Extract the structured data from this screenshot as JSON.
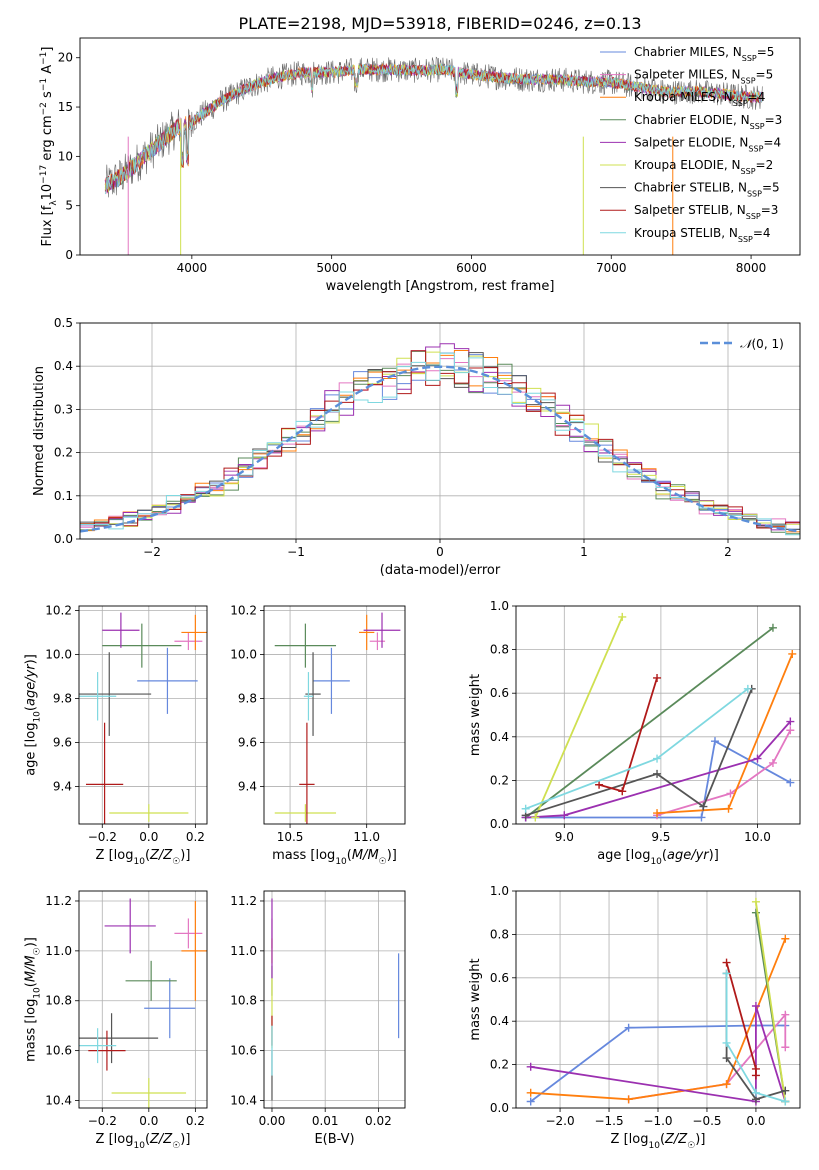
{
  "figure_title": "PLATE=2198, MJD=53918, FIBERID=0246, z=0.13",
  "colors": {
    "Chabrier MILES": "#6688dd",
    "Salpeter MILES": "#e377c2",
    "Kroupa MILES": "#ff7f0e",
    "Chabrier ELODIE": "#5a8a5a",
    "Salpeter ELODIE": "#9b30b0",
    "Kroupa ELODIE": "#cfe050",
    "Chabrier STELIB": "#555555",
    "Salpeter STELIB": "#b01a1a",
    "Kroupa STELIB": "#7fd8e0"
  },
  "chart_data": [
    {
      "id": "spectrum",
      "type": "line",
      "xlabel": "wavelength [Angstrom, rest frame]",
      "ylabel": "Flux [f_λ10^-17 erg cm^-2 s^-1 A^-1]",
      "xlim": [
        3200,
        8350
      ],
      "ylim": [
        0,
        22
      ],
      "xticks": [
        4000,
        5000,
        6000,
        7000,
        8000
      ],
      "yticks": [
        0,
        5,
        10,
        15,
        20
      ],
      "grid": false,
      "legend_position": "upper-right",
      "legend": [
        {
          "name": "Chabrier MILES",
          "nssp": "5"
        },
        {
          "name": "Salpeter MILES",
          "nssp": "5"
        },
        {
          "name": "Kroupa MILES",
          "nssp": "4"
        },
        {
          "name": "Chabrier ELODIE",
          "nssp": "3"
        },
        {
          "name": "Salpeter ELODIE",
          "nssp": "4"
        },
        {
          "name": "Kroupa ELODIE",
          "nssp": "2"
        },
        {
          "name": "Chabrier STELIB",
          "nssp": "5"
        },
        {
          "name": "Salpeter STELIB",
          "nssp": "3"
        },
        {
          "name": "Kroupa STELIB",
          "nssp": "4"
        }
      ],
      "data_envelope": {
        "x": [
          3380,
          3500,
          3700,
          3900,
          4000,
          4200,
          4400,
          4600,
          4800,
          5000,
          5200,
          5400,
          5600,
          5800,
          6000,
          6200,
          6400,
          6600,
          6800,
          7000,
          7200,
          7400,
          7600,
          7800,
          8000,
          8080
        ],
        "y": [
          7.0,
          8.0,
          10.5,
          13.0,
          13.5,
          15.5,
          17.0,
          18.0,
          18.5,
          18.5,
          18.8,
          18.8,
          18.7,
          18.8,
          18.3,
          18.0,
          17.8,
          17.8,
          17.6,
          17.5,
          17.0,
          16.5,
          16.6,
          16.3,
          16.0,
          16.0
        ]
      }
    },
    {
      "id": "residuals",
      "type": "line",
      "xlabel": "(data-model)/error",
      "ylabel": "Normed distribution",
      "xlim": [
        -2.5,
        2.5
      ],
      "ylim": [
        0,
        0.5
      ],
      "xticks": [
        -2,
        -1,
        0,
        1,
        2
      ],
      "yticks": [
        0.0,
        0.1,
        0.2,
        0.3,
        0.4,
        0.5
      ],
      "grid": true,
      "legend_position": "upper-right",
      "legend": [
        {
          "name": "N(0, 1)"
        }
      ],
      "reference_curve": "standard normal pdf",
      "histogram_bin_width": 0.1
    },
    {
      "id": "age_vs_Z",
      "type": "scatter",
      "xlabel": "Z [log10(Z/Z☉)]",
      "ylabel": "age  [log10(age/yr)]",
      "xlim": [
        -0.3,
        0.25
      ],
      "ylim": [
        9.23,
        10.22
      ],
      "xticks": [
        -0.2,
        0.0,
        0.2
      ],
      "yticks": [
        9.4,
        9.6,
        9.8,
        10.0,
        10.2
      ],
      "grid": true,
      "points": [
        {
          "model": "Chabrier MILES",
          "x": 0.08,
          "y": 9.88,
          "xerr": 0.13,
          "yerr": 0.15
        },
        {
          "model": "Salpeter MILES",
          "x": 0.17,
          "y": 10.06,
          "xerr": 0.06,
          "yerr": 0.04
        },
        {
          "model": "Kroupa MILES",
          "x": 0.2,
          "y": 10.1,
          "xerr": 0.06,
          "yerr": 0.08
        },
        {
          "model": "Chabrier ELODIE",
          "x": -0.03,
          "y": 10.04,
          "xerr": 0.17,
          "yerr": 0.1
        },
        {
          "model": "Salpeter ELODIE",
          "x": -0.12,
          "y": 10.11,
          "xerr": 0.08,
          "yerr": 0.08
        },
        {
          "model": "Kroupa ELODIE",
          "x": 0.0,
          "y": 9.28,
          "xerr": 0.17,
          "yerr": 0.04
        },
        {
          "model": "Chabrier STELIB",
          "x": -0.17,
          "y": 9.82,
          "xerr": 0.18,
          "yerr": 0.19
        },
        {
          "model": "Salpeter STELIB",
          "x": -0.19,
          "y": 9.41,
          "xerr": 0.08,
          "yerr": 0.28
        },
        {
          "model": "Kroupa STELIB",
          "x": -0.22,
          "y": 9.81,
          "xerr": 0.08,
          "yerr": 0.11
        }
      ]
    },
    {
      "id": "age_vs_mass",
      "type": "scatter",
      "xlabel": "mass [log10(M/M☉)]",
      "ylabel": "",
      "xlim": [
        10.33,
        11.25
      ],
      "ylim": [
        9.23,
        10.22
      ],
      "xticks": [
        10.5,
        11.0
      ],
      "yticks": [
        9.4,
        9.6,
        9.8,
        10.0,
        10.2
      ],
      "grid": true,
      "points": [
        {
          "model": "Chabrier MILES",
          "x": 10.77,
          "y": 9.88,
          "xerr": 0.12,
          "yerr": 0.15
        },
        {
          "model": "Salpeter MILES",
          "x": 11.07,
          "y": 10.06,
          "xerr": 0.05,
          "yerr": 0.04
        },
        {
          "model": "Kroupa MILES",
          "x": 11.0,
          "y": 10.1,
          "xerr": 0.05,
          "yerr": 0.08
        },
        {
          "model": "Chabrier ELODIE",
          "x": 10.6,
          "y": 10.04,
          "xerr": 0.2,
          "yerr": 0.1
        },
        {
          "model": "Salpeter ELODIE",
          "x": 11.1,
          "y": 10.11,
          "xerr": 0.12,
          "yerr": 0.08
        },
        {
          "model": "Kroupa ELODIE",
          "x": 10.6,
          "y": 9.28,
          "xerr": 0.2,
          "yerr": 0.04
        },
        {
          "model": "Chabrier STELIB",
          "x": 10.65,
          "y": 9.82,
          "xerr": 0.05,
          "yerr": 0.19
        },
        {
          "model": "Salpeter STELIB",
          "x": 10.61,
          "y": 9.41,
          "xerr": 0.05,
          "yerr": 0.28
        },
        {
          "model": "Kroupa STELIB",
          "x": 10.62,
          "y": 9.81,
          "xerr": 0.03,
          "yerr": 0.11
        }
      ]
    },
    {
      "id": "weight_vs_age",
      "type": "line",
      "xlabel": "age  [log10(age/yr)]",
      "ylabel": "mass weight",
      "xlim": [
        8.75,
        10.22
      ],
      "ylim": [
        0,
        1.0
      ],
      "xticks": [
        9.0,
        9.5,
        10.0
      ],
      "yticks": [
        0.0,
        0.2,
        0.4,
        0.6,
        0.8,
        1.0
      ],
      "grid": true,
      "series": [
        {
          "model": "Chabrier MILES",
          "points": [
            [
              8.8,
              0.03
            ],
            [
              9.71,
              0.03
            ],
            [
              9.78,
              0.38
            ],
            [
              10.17,
              0.19
            ]
          ]
        },
        {
          "model": "Salpeter MILES",
          "points": [
            [
              9.48,
              0.04
            ],
            [
              9.86,
              0.14
            ],
            [
              10.08,
              0.28
            ],
            [
              10.17,
              0.43
            ]
          ]
        },
        {
          "model": "Kroupa MILES",
          "points": [
            [
              9.48,
              0.05
            ],
            [
              9.85,
              0.07
            ],
            [
              10.18,
              0.78
            ]
          ]
        },
        {
          "model": "Chabrier ELODIE",
          "points": [
            [
              8.8,
              0.03
            ],
            [
              10.08,
              0.9
            ]
          ]
        },
        {
          "model": "Salpeter ELODIE",
          "points": [
            [
              8.8,
              0.03
            ],
            [
              9.0,
              0.04
            ],
            [
              10.0,
              0.3
            ],
            [
              10.17,
              0.47
            ]
          ]
        },
        {
          "model": "Kroupa ELODIE",
          "points": [
            [
              8.85,
              0.03
            ],
            [
              9.3,
              0.95
            ]
          ]
        },
        {
          "model": "Chabrier STELIB",
          "points": [
            [
              8.8,
              0.04
            ],
            [
              9.48,
              0.23
            ],
            [
              9.72,
              0.08
            ],
            [
              9.97,
              0.62
            ]
          ]
        },
        {
          "model": "Salpeter STELIB",
          "points": [
            [
              9.18,
              0.18
            ],
            [
              9.3,
              0.15
            ],
            [
              9.48,
              0.67
            ]
          ]
        },
        {
          "model": "Kroupa STELIB",
          "points": [
            [
              8.8,
              0.07
            ],
            [
              9.48,
              0.3
            ],
            [
              9.95,
              0.62
            ]
          ]
        }
      ]
    },
    {
      "id": "mass_vs_Z",
      "type": "scatter",
      "xlabel": "Z [log10(Z/Z☉)]",
      "ylabel": "mass [log10(M/M☉)]",
      "xlim": [
        -0.3,
        0.25
      ],
      "ylim": [
        10.37,
        11.24
      ],
      "xticks": [
        -0.2,
        0.0,
        0.2
      ],
      "yticks": [
        10.4,
        10.6,
        10.8,
        11.0,
        11.2
      ],
      "grid": true,
      "points": [
        {
          "model": "Chabrier MILES",
          "x": 0.09,
          "y": 10.77,
          "xerr": 0.11,
          "yerr": 0.12
        },
        {
          "model": "Salpeter MILES",
          "x": 0.17,
          "y": 11.07,
          "xerr": 0.06,
          "yerr": 0.06
        },
        {
          "model": "Kroupa MILES",
          "x": 0.2,
          "y": 11.0,
          "xerr": 0.06,
          "yerr": 0.2
        },
        {
          "model": "Chabrier ELODIE",
          "x": 0.01,
          "y": 10.88,
          "xerr": 0.11,
          "yerr": 0.08
        },
        {
          "model": "Salpeter ELODIE",
          "x": -0.08,
          "y": 11.1,
          "xerr": 0.11,
          "yerr": 0.11
        },
        {
          "model": "Kroupa ELODIE",
          "x": 0.0,
          "y": 10.43,
          "xerr": 0.16,
          "yerr": 0.06
        },
        {
          "model": "Chabrier STELIB",
          "x": -0.16,
          "y": 10.65,
          "xerr": 0.2,
          "yerr": 0.1
        },
        {
          "model": "Salpeter STELIB",
          "x": -0.18,
          "y": 10.6,
          "xerr": 0.08,
          "yerr": 0.08
        },
        {
          "model": "Kroupa STELIB",
          "x": -0.22,
          "y": 10.62,
          "xerr": 0.08,
          "yerr": 0.07
        }
      ]
    },
    {
      "id": "mass_vs_ebv",
      "type": "scatter",
      "xlabel": "E(B-V)",
      "ylabel": "",
      "xlim": [
        -0.0015,
        0.025
      ],
      "ylim": [
        10.37,
        11.24
      ],
      "xticks": [
        0.0,
        0.01,
        0.02
      ],
      "yticks": [
        10.4,
        10.6,
        10.8,
        11.0,
        11.2
      ],
      "grid": true,
      "points": [
        {
          "model": "Chabrier MILES",
          "x": 0.0238,
          "y": 10.82,
          "xerr": 0,
          "yerr": 0.17
        },
        {
          "model": "Salpeter MILES",
          "x": 0.0,
          "y": 11.07,
          "xerr": 0,
          "yerr": 0.06
        },
        {
          "model": "Kroupa MILES",
          "x": 0.0,
          "y": 11.0,
          "xerr": 0,
          "yerr": 0.05
        },
        {
          "model": "Chabrier ELODIE",
          "x": 0.0,
          "y": 10.88,
          "xerr": 0,
          "yerr": 0.06
        },
        {
          "model": "Salpeter ELODIE",
          "x": 0.0,
          "y": 11.05,
          "xerr": 0,
          "yerr": 0.16
        },
        {
          "model": "Kroupa ELODIE",
          "x": 0.0,
          "y": 10.75,
          "xerr": 0,
          "yerr": 0.14
        },
        {
          "model": "Chabrier STELIB",
          "x": 0.0,
          "y": 10.5,
          "xerr": 0,
          "yerr": 0.1
        },
        {
          "model": "Salpeter STELIB",
          "x": 0.0,
          "y": 10.68,
          "xerr": 0,
          "yerr": 0.06
        },
        {
          "model": "Kroupa STELIB",
          "x": 0.0,
          "y": 10.6,
          "xerr": 0,
          "yerr": 0.1
        }
      ]
    },
    {
      "id": "weight_vs_Z",
      "type": "line",
      "xlabel": "Z [log10(Z/Z☉)]",
      "ylabel": "mass weight",
      "xlim": [
        -2.45,
        0.45
      ],
      "ylim": [
        0,
        1.0
      ],
      "xticks": [
        -2.0,
        -1.5,
        -1.0,
        -0.5,
        0.0
      ],
      "yticks": [
        0.0,
        0.2,
        0.4,
        0.6,
        0.8,
        1.0
      ],
      "grid": true,
      "series": [
        {
          "model": "Chabrier MILES",
          "points": [
            [
              -2.3,
              0.03
            ],
            [
              -1.3,
              0.37
            ],
            [
              0.0,
              0.38
            ],
            [
              0.3,
              0.38
            ]
          ]
        },
        {
          "model": "Salpeter MILES",
          "points": [
            [
              -1.3,
              0.04
            ],
            [
              -0.3,
              0.11
            ],
            [
              0.3,
              0.43
            ],
            [
              0.3,
              0.28
            ]
          ]
        },
        {
          "model": "Kroupa MILES",
          "points": [
            [
              -2.3,
              0.07
            ],
            [
              -1.3,
              0.04
            ],
            [
              -0.3,
              0.11
            ],
            [
              0.3,
              0.78
            ]
          ]
        },
        {
          "model": "Chabrier ELODIE",
          "points": [
            [
              0.0,
              0.9
            ],
            [
              0.3,
              0.03
            ]
          ]
        },
        {
          "model": "Salpeter ELODIE",
          "points": [
            [
              -2.3,
              0.19
            ],
            [
              0.0,
              0.03
            ],
            [
              0.0,
              0.47
            ],
            [
              0.3,
              0.03
            ]
          ]
        },
        {
          "model": "Kroupa ELODIE",
          "points": [
            [
              0.0,
              0.95
            ],
            [
              0.3,
              0.03
            ]
          ]
        },
        {
          "model": "Chabrier STELIB",
          "points": [
            [
              -0.3,
              0.62
            ],
            [
              -0.3,
              0.23
            ],
            [
              0.0,
              0.04
            ],
            [
              0.3,
              0.08
            ]
          ]
        },
        {
          "model": "Salpeter STELIB",
          "points": [
            [
              -0.3,
              0.67
            ],
            [
              0.0,
              0.18
            ],
            [
              0.0,
              0.15
            ]
          ]
        },
        {
          "model": "Kroupa STELIB",
          "points": [
            [
              -0.3,
              0.62
            ],
            [
              -0.3,
              0.3
            ],
            [
              0.0,
              0.07
            ],
            [
              0.3,
              0.03
            ]
          ]
        }
      ]
    }
  ]
}
